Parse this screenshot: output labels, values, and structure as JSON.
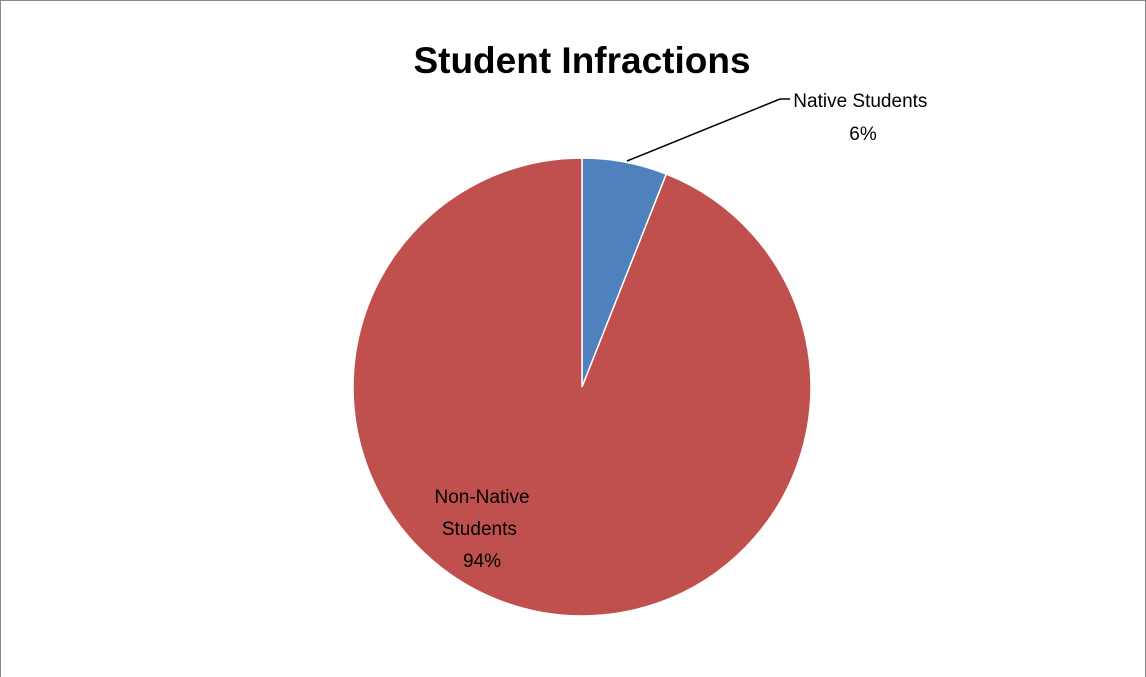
{
  "chart_data": {
    "type": "pie",
    "title": "Student Infractions",
    "slices": [
      {
        "label": "Native Students",
        "value": 6,
        "value_label": "6%",
        "color": "#4F81BD"
      },
      {
        "label": "Non-Native Students",
        "value": 94,
        "value_label": "94%",
        "color": "#C0504D"
      }
    ],
    "start_angle": "12 o'clock",
    "direction": "clockwise",
    "legend": "none",
    "frame_color": "#878787",
    "slice_border_color": "#ffffff"
  }
}
